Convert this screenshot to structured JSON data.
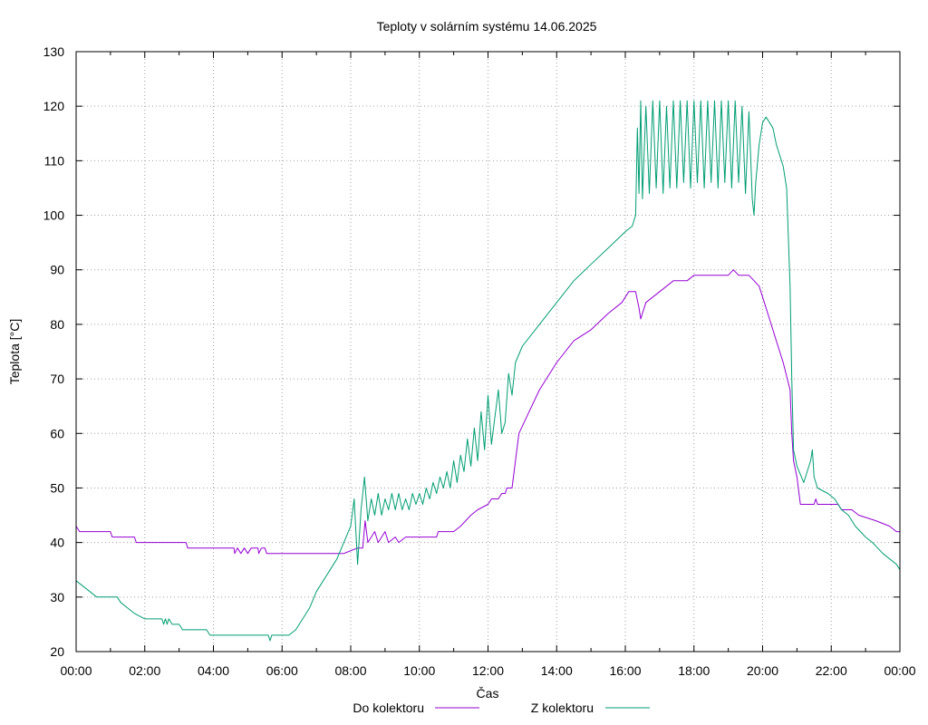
{
  "chart_data": {
    "type": "line",
    "title": "Teploty v solárním systému 14.06.2025",
    "xlabel": "Čas",
    "ylabel": "Teplota [°C]",
    "xlim": [
      0,
      24
    ],
    "ylim": [
      20,
      130
    ],
    "grid": true,
    "legend_placement": "bottom",
    "x_ticks": [
      {
        "value": 0,
        "label": "00:00"
      },
      {
        "value": 2,
        "label": "02:00"
      },
      {
        "value": 4,
        "label": "04:00"
      },
      {
        "value": 6,
        "label": "06:00"
      },
      {
        "value": 8,
        "label": "08:00"
      },
      {
        "value": 10,
        "label": "10:00"
      },
      {
        "value": 12,
        "label": "12:00"
      },
      {
        "value": 14,
        "label": "14:00"
      },
      {
        "value": 16,
        "label": "16:00"
      },
      {
        "value": 18,
        "label": "18:00"
      },
      {
        "value": 20,
        "label": "20:00"
      },
      {
        "value": 22,
        "label": "22:00"
      },
      {
        "value": 24,
        "label": "00:00"
      }
    ],
    "y_ticks": [
      {
        "value": 20,
        "label": "20"
      },
      {
        "value": 30,
        "label": "30"
      },
      {
        "value": 40,
        "label": "40"
      },
      {
        "value": 50,
        "label": "50"
      },
      {
        "value": 60,
        "label": "60"
      },
      {
        "value": 70,
        "label": "70"
      },
      {
        "value": 80,
        "label": "80"
      },
      {
        "value": 90,
        "label": "90"
      },
      {
        "value": 100,
        "label": "100"
      },
      {
        "value": 110,
        "label": "110"
      },
      {
        "value": 120,
        "label": "120"
      },
      {
        "value": 130,
        "label": "130"
      }
    ],
    "series": [
      {
        "name": "Do kolektoru",
        "color": "#9400d3",
        "points": [
          [
            0.0,
            43
          ],
          [
            0.1,
            42
          ],
          [
            1.0,
            42
          ],
          [
            1.05,
            41
          ],
          [
            1.7,
            41
          ],
          [
            1.75,
            40
          ],
          [
            3.2,
            40
          ],
          [
            3.25,
            39
          ],
          [
            4.6,
            39
          ],
          [
            4.62,
            38
          ],
          [
            4.7,
            39
          ],
          [
            4.8,
            38
          ],
          [
            4.9,
            39
          ],
          [
            5.0,
            38
          ],
          [
            5.1,
            39
          ],
          [
            5.3,
            39
          ],
          [
            5.32,
            38
          ],
          [
            5.4,
            39
          ],
          [
            5.5,
            39
          ],
          [
            5.55,
            38
          ],
          [
            7.8,
            38
          ],
          [
            8.2,
            39
          ],
          [
            8.35,
            39
          ],
          [
            8.42,
            44
          ],
          [
            8.5,
            40
          ],
          [
            8.7,
            42
          ],
          [
            8.8,
            40
          ],
          [
            9.0,
            42
          ],
          [
            9.1,
            40
          ],
          [
            9.3,
            41
          ],
          [
            9.4,
            40
          ],
          [
            9.6,
            41
          ],
          [
            10.5,
            41
          ],
          [
            10.55,
            42
          ],
          [
            11.0,
            42
          ],
          [
            11.2,
            43
          ],
          [
            11.5,
            45
          ],
          [
            11.7,
            46
          ],
          [
            12.0,
            47
          ],
          [
            12.1,
            48
          ],
          [
            12.3,
            48
          ],
          [
            12.4,
            49
          ],
          [
            12.5,
            49
          ],
          [
            12.55,
            50
          ],
          [
            12.7,
            50
          ],
          [
            12.8,
            55
          ],
          [
            12.9,
            60
          ],
          [
            13.2,
            64
          ],
          [
            13.5,
            68
          ],
          [
            14.0,
            73
          ],
          [
            14.5,
            77
          ],
          [
            15.0,
            79
          ],
          [
            15.5,
            82
          ],
          [
            15.9,
            84
          ],
          [
            16.1,
            86
          ],
          [
            16.3,
            86
          ],
          [
            16.4,
            83
          ],
          [
            16.45,
            81
          ],
          [
            16.6,
            84
          ],
          [
            17.0,
            86
          ],
          [
            17.2,
            87
          ],
          [
            17.4,
            88
          ],
          [
            17.8,
            88
          ],
          [
            18.0,
            89
          ],
          [
            19.0,
            89
          ],
          [
            19.15,
            90
          ],
          [
            19.3,
            89
          ],
          [
            19.6,
            89
          ],
          [
            19.9,
            87
          ],
          [
            20.0,
            85
          ],
          [
            20.2,
            81
          ],
          [
            20.4,
            77
          ],
          [
            20.6,
            73
          ],
          [
            20.8,
            68
          ],
          [
            20.85,
            60
          ],
          [
            20.9,
            55
          ],
          [
            21.0,
            52
          ],
          [
            21.1,
            47
          ],
          [
            21.5,
            47
          ],
          [
            21.55,
            48
          ],
          [
            21.6,
            47
          ],
          [
            22.2,
            47
          ],
          [
            22.3,
            46
          ],
          [
            22.6,
            46
          ],
          [
            22.8,
            45
          ],
          [
            23.3,
            44
          ],
          [
            23.7,
            43
          ],
          [
            23.9,
            42
          ],
          [
            24.0,
            42
          ]
        ]
      },
      {
        "name": "Z kolektoru",
        "color": "#009e73",
        "points": [
          [
            0.0,
            33
          ],
          [
            0.2,
            32
          ],
          [
            0.4,
            31
          ],
          [
            0.6,
            30
          ],
          [
            1.2,
            30
          ],
          [
            1.3,
            29
          ],
          [
            1.5,
            28
          ],
          [
            1.7,
            27
          ],
          [
            2.0,
            26
          ],
          [
            2.5,
            26
          ],
          [
            2.55,
            25
          ],
          [
            2.6,
            26
          ],
          [
            2.65,
            25
          ],
          [
            2.7,
            26
          ],
          [
            2.8,
            25
          ],
          [
            3.0,
            25
          ],
          [
            3.1,
            24
          ],
          [
            3.2,
            24
          ],
          [
            3.3,
            24
          ],
          [
            3.8,
            24
          ],
          [
            3.9,
            23
          ],
          [
            5.6,
            23
          ],
          [
            5.65,
            22
          ],
          [
            5.7,
            23
          ],
          [
            6.2,
            23
          ],
          [
            6.4,
            24
          ],
          [
            6.6,
            26
          ],
          [
            6.8,
            28
          ],
          [
            7.0,
            31
          ],
          [
            7.2,
            33
          ],
          [
            7.4,
            35
          ],
          [
            7.6,
            37
          ],
          [
            7.8,
            40
          ],
          [
            8.0,
            43
          ],
          [
            8.1,
            48
          ],
          [
            8.2,
            36
          ],
          [
            8.3,
            46
          ],
          [
            8.4,
            52
          ],
          [
            8.5,
            44
          ],
          [
            8.6,
            48
          ],
          [
            8.7,
            45
          ],
          [
            8.8,
            49
          ],
          [
            8.9,
            45
          ],
          [
            9.0,
            48
          ],
          [
            9.1,
            46
          ],
          [
            9.2,
            49
          ],
          [
            9.3,
            46
          ],
          [
            9.4,
            49
          ],
          [
            9.5,
            46
          ],
          [
            9.6,
            48
          ],
          [
            9.7,
            46
          ],
          [
            9.8,
            49
          ],
          [
            9.9,
            47
          ],
          [
            10.0,
            49
          ],
          [
            10.1,
            47
          ],
          [
            10.2,
            50
          ],
          [
            10.3,
            48
          ],
          [
            10.4,
            51
          ],
          [
            10.5,
            49
          ],
          [
            10.6,
            52
          ],
          [
            10.7,
            50
          ],
          [
            10.8,
            53
          ],
          [
            10.9,
            50
          ],
          [
            11.0,
            55
          ],
          [
            11.1,
            51
          ],
          [
            11.2,
            56
          ],
          [
            11.3,
            53
          ],
          [
            11.4,
            59
          ],
          [
            11.5,
            54
          ],
          [
            11.6,
            61
          ],
          [
            11.7,
            55
          ],
          [
            11.8,
            64
          ],
          [
            11.9,
            57
          ],
          [
            12.0,
            67
          ],
          [
            12.1,
            58
          ],
          [
            12.3,
            68
          ],
          [
            12.4,
            60
          ],
          [
            12.5,
            62
          ],
          [
            12.6,
            71
          ],
          [
            12.7,
            67
          ],
          [
            12.8,
            73
          ],
          [
            13.0,
            76
          ],
          [
            13.5,
            80
          ],
          [
            14.0,
            84
          ],
          [
            14.5,
            88
          ],
          [
            15.0,
            91
          ],
          [
            15.5,
            94
          ],
          [
            16.0,
            97
          ],
          [
            16.2,
            98
          ],
          [
            16.3,
            100
          ],
          [
            16.35,
            116
          ],
          [
            16.4,
            104
          ],
          [
            16.45,
            121
          ],
          [
            16.5,
            103
          ],
          [
            16.6,
            120
          ],
          [
            16.7,
            104
          ],
          [
            16.8,
            121
          ],
          [
            16.9,
            105
          ],
          [
            17.0,
            121
          ],
          [
            17.1,
            104
          ],
          [
            17.2,
            120
          ],
          [
            17.3,
            105
          ],
          [
            17.4,
            121
          ],
          [
            17.5,
            105
          ],
          [
            17.6,
            121
          ],
          [
            17.7,
            106
          ],
          [
            17.8,
            121
          ],
          [
            17.9,
            105
          ],
          [
            18.0,
            121
          ],
          [
            18.1,
            106
          ],
          [
            18.2,
            121
          ],
          [
            18.3,
            105
          ],
          [
            18.4,
            121
          ],
          [
            18.5,
            106
          ],
          [
            18.6,
            121
          ],
          [
            18.7,
            105
          ],
          [
            18.8,
            121
          ],
          [
            18.9,
            106
          ],
          [
            19.0,
            121
          ],
          [
            19.1,
            105
          ],
          [
            19.2,
            121
          ],
          [
            19.3,
            106
          ],
          [
            19.4,
            120
          ],
          [
            19.5,
            104
          ],
          [
            19.6,
            119
          ],
          [
            19.7,
            103
          ],
          [
            19.75,
            100
          ],
          [
            19.8,
            106
          ],
          [
            19.9,
            113
          ],
          [
            20.0,
            117
          ],
          [
            20.1,
            118
          ],
          [
            20.2,
            117
          ],
          [
            20.3,
            116
          ],
          [
            20.4,
            113
          ],
          [
            20.6,
            109
          ],
          [
            20.7,
            105
          ],
          [
            20.8,
            87
          ],
          [
            20.85,
            70
          ],
          [
            20.9,
            57
          ],
          [
            21.0,
            54
          ],
          [
            21.2,
            51
          ],
          [
            21.3,
            53
          ],
          [
            21.4,
            55
          ],
          [
            21.45,
            57
          ],
          [
            21.5,
            52
          ],
          [
            21.6,
            50
          ],
          [
            21.9,
            49
          ],
          [
            22.1,
            48
          ],
          [
            22.3,
            46
          ],
          [
            22.5,
            45
          ],
          [
            22.7,
            43
          ],
          [
            23.0,
            41
          ],
          [
            23.2,
            40
          ],
          [
            23.5,
            38
          ],
          [
            23.7,
            37
          ],
          [
            23.9,
            36
          ],
          [
            24.0,
            35
          ]
        ]
      }
    ]
  }
}
